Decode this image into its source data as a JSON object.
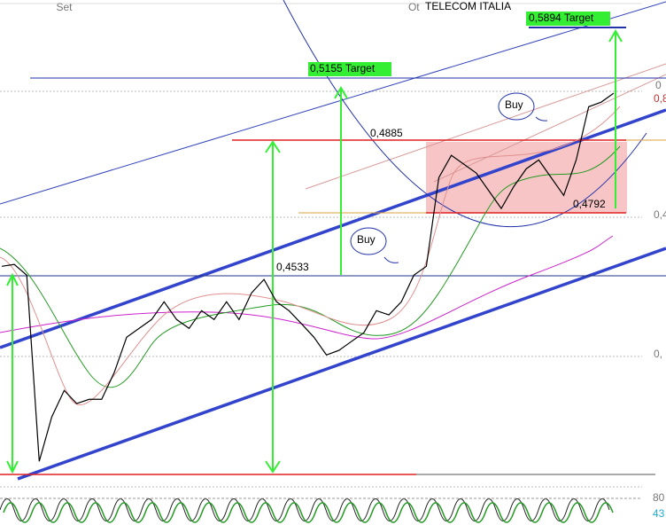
{
  "chart_data": {
    "type": "line",
    "title": "TELECOM ITALIA",
    "categories": [
      null,
      null,
      null,
      null,
      null,
      "Set",
      null,
      null,
      null,
      null,
      null,
      null,
      null,
      null,
      null,
      null,
      null,
      null,
      null,
      null,
      null,
      null,
      null,
      null,
      null,
      null,
      null,
      null,
      null,
      null,
      null,
      null,
      null,
      "Ot",
      null,
      null,
      null,
      null,
      null,
      null,
      null,
      null,
      null,
      null,
      null,
      null,
      null,
      null,
      null,
      null
    ],
    "series": [
      {
        "name": "TELECOM ITALIA",
        "color": "#000000",
        "values": [
          0.4558,
          0.4563,
          0.4535,
          0.4052,
          0.4167,
          0.4236,
          0.4202,
          0.4213,
          0.4213,
          0.4282,
          0.4374,
          0.4397,
          0.442,
          0.4466,
          0.442,
          0.4397,
          0.4443,
          0.442,
          0.4466,
          0.442,
          0.4489,
          0.4524,
          0.4466,
          0.4443,
          0.4409,
          0.4374,
          0.4328,
          0.434,
          0.4363,
          0.4386,
          0.4443,
          0.4432,
          0.4466,
          0.4535,
          0.4558,
          0.4788,
          0.4846,
          0.4823,
          0.48,
          0.4754,
          0.4708,
          0.4765,
          0.4811,
          0.4834,
          0.4788,
          0.4742,
          0.4834,
          0.4972,
          0.4984,
          0.5007
        ]
      }
    ],
    "ylim": [
      0.4018,
      0.5249
    ],
    "annotations": [
      "0,4885",
      "0,4533",
      "0,4792",
      "0,5155 Target",
      "0,5894 Target",
      "Buy",
      "Buy"
    ],
    "right_labels": [
      "0",
      "0,8",
      "0,4",
      "0,",
      "80",
      "43"
    ]
  }
}
